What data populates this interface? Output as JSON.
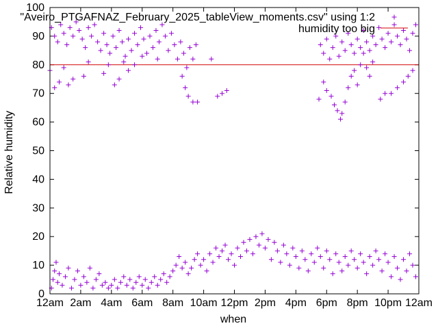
{
  "chart_data": {
    "type": "scatter",
    "xlabel": "when",
    "ylabel": "Relative humidity",
    "xlim": [
      0,
      24
    ],
    "ylim": [
      0,
      100
    ],
    "grid": false,
    "legend_position": "top-right",
    "x_ticks": [
      {
        "value": 0,
        "label": "12am"
      },
      {
        "value": 2,
        "label": "2am"
      },
      {
        "value": 4,
        "label": "4am"
      },
      {
        "value": 6,
        "label": "6am"
      },
      {
        "value": 8,
        "label": "8am"
      },
      {
        "value": 10,
        "label": "10am"
      },
      {
        "value": 12,
        "label": "12pm"
      },
      {
        "value": 14,
        "label": "2pm"
      },
      {
        "value": 16,
        "label": "4pm"
      },
      {
        "value": 18,
        "label": "6pm"
      },
      {
        "value": 20,
        "label": "8pm"
      },
      {
        "value": 22,
        "label": "10pm"
      },
      {
        "value": 24,
        "label": "12am"
      }
    ],
    "y_ticks": [
      0,
      10,
      20,
      30,
      40,
      50,
      60,
      70,
      80,
      90,
      100
    ],
    "series": [
      {
        "name": "\"Aveiro_PTGAFNAZ_February_2025_tableView_moments.csv\" using 1:2",
        "marker": "plus",
        "color": "#9400d3",
        "points": [
          [
            0.1,
            2
          ],
          [
            0.2,
            5
          ],
          [
            0.3,
            8
          ],
          [
            0.4,
            11
          ],
          [
            0.5,
            4
          ],
          [
            0.6,
            7
          ],
          [
            0.8,
            3
          ],
          [
            1.0,
            6
          ],
          [
            1.2,
            9
          ],
          [
            1.4,
            2
          ],
          [
            1.6,
            5
          ],
          [
            1.8,
            8
          ],
          [
            2.0,
            3
          ],
          [
            2.2,
            6
          ],
          [
            2.4,
            4
          ],
          [
            2.6,
            9
          ],
          [
            2.8,
            2
          ],
          [
            3.0,
            5
          ],
          [
            3.2,
            7
          ],
          [
            3.4,
            3
          ],
          [
            3.6,
            4
          ],
          [
            3.8,
            2
          ],
          [
            4.0,
            3
          ],
          [
            4.2,
            5
          ],
          [
            4.4,
            2
          ],
          [
            4.6,
            4
          ],
          [
            4.8,
            6
          ],
          [
            5.0,
            3
          ],
          [
            5.2,
            5
          ],
          [
            5.4,
            2
          ],
          [
            5.6,
            4
          ],
          [
            5.8,
            6
          ],
          [
            6.0,
            3
          ],
          [
            6.2,
            5
          ],
          [
            6.4,
            2
          ],
          [
            6.6,
            4
          ],
          [
            6.8,
            6
          ],
          [
            7.0,
            3
          ],
          [
            7.2,
            5
          ],
          [
            7.4,
            7
          ],
          [
            7.6,
            4
          ],
          [
            7.8,
            6
          ],
          [
            8.0,
            8
          ],
          [
            8.2,
            10
          ],
          [
            8.4,
            13
          ],
          [
            8.6,
            9
          ],
          [
            8.8,
            11
          ],
          [
            9.0,
            7
          ],
          [
            9.2,
            9
          ],
          [
            9.4,
            12
          ],
          [
            9.6,
            14
          ],
          [
            9.8,
            10
          ],
          [
            10.0,
            12
          ],
          [
            10.2,
            8
          ],
          [
            10.4,
            14
          ],
          [
            10.6,
            11
          ],
          [
            10.8,
            16
          ],
          [
            11.0,
            13
          ],
          [
            11.2,
            15
          ],
          [
            11.4,
            17
          ],
          [
            11.6,
            12
          ],
          [
            11.8,
            14
          ],
          [
            12.0,
            10
          ],
          [
            12.2,
            16
          ],
          [
            12.4,
            13
          ],
          [
            12.6,
            18
          ],
          [
            12.8,
            15
          ],
          [
            13.0,
            19
          ],
          [
            13.2,
            14
          ],
          [
            13.4,
            20
          ],
          [
            13.6,
            17
          ],
          [
            13.8,
            21
          ],
          [
            14.0,
            16
          ],
          [
            14.2,
            19
          ],
          [
            14.4,
            12
          ],
          [
            14.6,
            18
          ],
          [
            14.8,
            15
          ],
          [
            15.0,
            11
          ],
          [
            15.2,
            17
          ],
          [
            15.4,
            14
          ],
          [
            15.6,
            10
          ],
          [
            15.8,
            16
          ],
          [
            16.0,
            13
          ],
          [
            16.2,
            9
          ],
          [
            16.4,
            15
          ],
          [
            16.6,
            12
          ],
          [
            16.8,
            8
          ],
          [
            17.0,
            14
          ],
          [
            17.2,
            11
          ],
          [
            17.4,
            16
          ],
          [
            17.6,
            13
          ],
          [
            17.8,
            9
          ],
          [
            18.0,
            15
          ],
          [
            18.2,
            12
          ],
          [
            18.4,
            7
          ],
          [
            18.6,
            14
          ],
          [
            18.8,
            11
          ],
          [
            19.0,
            8
          ],
          [
            19.2,
            13
          ],
          [
            19.4,
            10
          ],
          [
            19.6,
            15
          ],
          [
            19.8,
            12
          ],
          [
            20.0,
            9
          ],
          [
            20.2,
            14
          ],
          [
            20.4,
            11
          ],
          [
            20.6,
            7
          ],
          [
            20.8,
            13
          ],
          [
            21.0,
            10
          ],
          [
            21.2,
            15
          ],
          [
            21.4,
            12
          ],
          [
            21.6,
            8
          ],
          [
            21.8,
            14
          ],
          [
            22.0,
            11
          ],
          [
            22.2,
            6
          ],
          [
            22.4,
            13
          ],
          [
            22.6,
            9
          ],
          [
            22.8,
            5
          ],
          [
            23.0,
            12
          ],
          [
            23.2,
            8
          ],
          [
            23.4,
            14
          ],
          [
            23.6,
            10
          ],
          [
            23.8,
            6
          ],
          [
            0.1,
            93
          ],
          [
            0.3,
            90
          ],
          [
            0.5,
            88
          ],
          [
            0.7,
            94
          ],
          [
            0.9,
            91
          ],
          [
            1.1,
            87
          ],
          [
            1.3,
            93
          ],
          [
            1.5,
            90
          ],
          [
            1.7,
            95
          ],
          [
            1.9,
            92
          ],
          [
            2.1,
            89
          ],
          [
            2.3,
            86
          ],
          [
            2.5,
            93
          ],
          [
            2.7,
            90
          ],
          [
            2.9,
            94
          ],
          [
            3.1,
            88
          ],
          [
            3.3,
            85
          ],
          [
            3.5,
            91
          ],
          [
            3.7,
            87
          ],
          [
            3.9,
            84
          ],
          [
            4.1,
            90
          ],
          [
            4.3,
            86
          ],
          [
            4.5,
            92
          ],
          [
            4.7,
            88
          ],
          [
            4.9,
            83
          ],
          [
            5.1,
            89
          ],
          [
            5.3,
            85
          ],
          [
            5.5,
            91
          ],
          [
            5.7,
            87
          ],
          [
            5.9,
            93
          ],
          [
            6.1,
            89
          ],
          [
            6.3,
            84
          ],
          [
            6.5,
            90
          ],
          [
            6.7,
            86
          ],
          [
            6.9,
            92
          ],
          [
            7.1,
            88
          ],
          [
            7.3,
            94
          ],
          [
            7.5,
            90
          ],
          [
            7.7,
            85
          ],
          [
            7.9,
            91
          ],
          [
            8.1,
            87
          ],
          [
            8.3,
            82
          ],
          [
            8.5,
            88
          ],
          [
            8.7,
            84
          ],
          [
            8.9,
            79
          ],
          [
            9.1,
            86
          ],
          [
            9.3,
            82
          ],
          [
            9.5,
            87
          ],
          [
            0.0,
            78
          ],
          [
            0.3,
            72
          ],
          [
            0.6,
            74
          ],
          [
            0.9,
            79
          ],
          [
            1.2,
            73
          ],
          [
            1.5,
            75
          ],
          [
            2.2,
            76
          ],
          [
            2.5,
            81
          ],
          [
            3.5,
            77
          ],
          [
            3.8,
            80
          ],
          [
            4.2,
            73
          ],
          [
            4.5,
            75
          ],
          [
            4.8,
            81
          ],
          [
            5.1,
            78
          ],
          [
            5.5,
            80
          ],
          [
            6.0,
            83
          ],
          [
            7.0,
            82
          ],
          [
            8.6,
            76
          ],
          [
            8.8,
            72
          ],
          [
            9.0,
            69
          ],
          [
            9.3,
            67
          ],
          [
            9.6,
            67
          ],
          [
            10.5,
            82
          ],
          [
            10.9,
            69
          ],
          [
            11.2,
            70
          ],
          [
            11.5,
            71
          ],
          [
            17.5,
            68
          ],
          [
            17.8,
            74
          ],
          [
            18.0,
            71
          ],
          [
            18.3,
            69
          ],
          [
            18.5,
            66
          ],
          [
            18.7,
            64
          ],
          [
            18.9,
            61
          ],
          [
            19.0,
            63
          ],
          [
            19.2,
            67
          ],
          [
            19.4,
            72
          ],
          [
            19.6,
            76
          ],
          [
            19.8,
            78
          ],
          [
            20.0,
            73
          ],
          [
            20.2,
            80
          ],
          [
            20.4,
            84
          ],
          [
            20.6,
            79
          ],
          [
            20.8,
            76
          ],
          [
            21.0,
            81
          ],
          [
            21.5,
            68
          ],
          [
            21.8,
            70
          ],
          [
            22.2,
            70
          ],
          [
            22.6,
            72
          ],
          [
            23.0,
            74
          ],
          [
            23.3,
            76
          ],
          [
            23.6,
            78
          ],
          [
            17.6,
            87
          ],
          [
            17.8,
            84
          ],
          [
            18.0,
            89
          ],
          [
            18.2,
            82
          ],
          [
            18.4,
            86
          ],
          [
            18.6,
            90
          ],
          [
            18.8,
            83
          ],
          [
            19.0,
            88
          ],
          [
            19.2,
            85
          ],
          [
            19.4,
            91
          ],
          [
            19.6,
            87
          ],
          [
            19.8,
            84
          ],
          [
            20.0,
            89
          ],
          [
            20.2,
            86
          ],
          [
            20.4,
            92
          ],
          [
            20.6,
            88
          ],
          [
            20.8,
            85
          ],
          [
            21.0,
            90
          ],
          [
            21.2,
            87
          ],
          [
            21.4,
            93
          ],
          [
            21.6,
            89
          ],
          [
            21.8,
            86
          ],
          [
            22.0,
            91
          ],
          [
            22.2,
            88
          ],
          [
            22.4,
            94
          ],
          [
            22.6,
            90
          ],
          [
            22.8,
            87
          ],
          [
            23.0,
            92
          ],
          [
            23.2,
            89
          ],
          [
            23.4,
            85
          ],
          [
            23.6,
            91
          ],
          [
            23.8,
            94
          ]
        ]
      },
      {
        "name": "humidity too big",
        "type": "line",
        "color": "#d40000",
        "y": 80
      }
    ]
  }
}
